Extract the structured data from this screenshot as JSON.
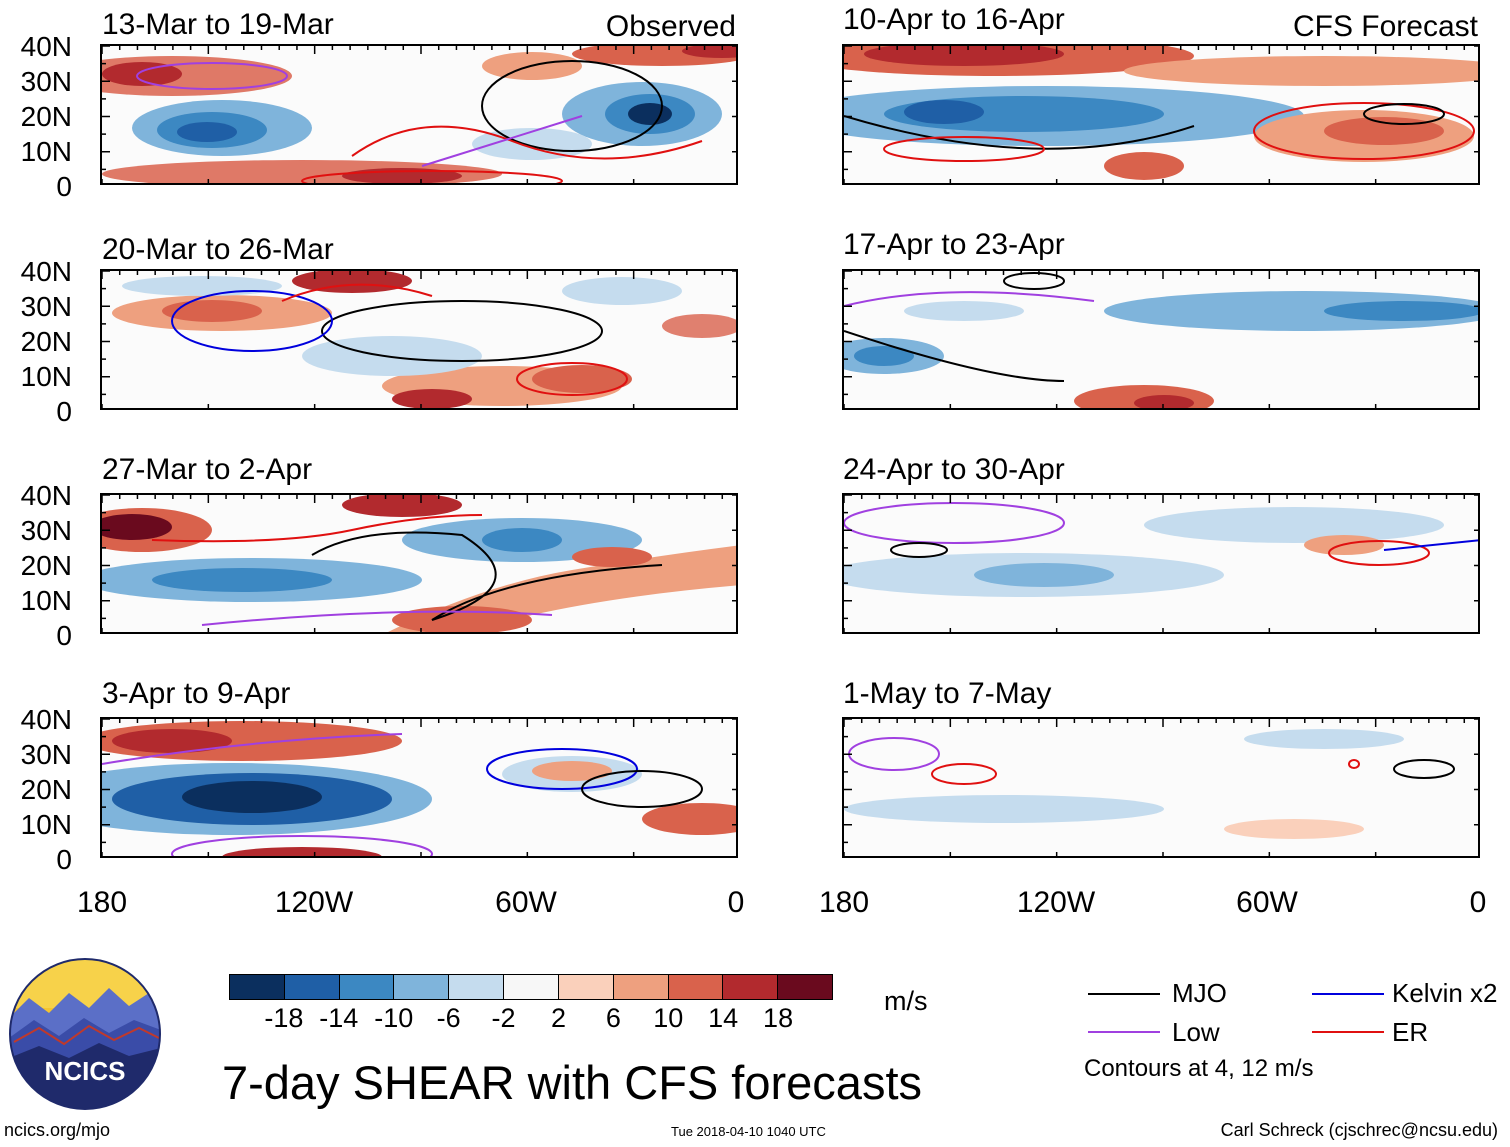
{
  "main_title": "7-day SHEAR with CFS forecasts",
  "observed_label": "Observed",
  "forecast_label": "CFS Forecast",
  "panels": [
    {
      "title": "13-Mar to 19-Mar",
      "column": "observed"
    },
    {
      "title": "20-Mar to 26-Mar",
      "column": "observed"
    },
    {
      "title": "27-Mar to 2-Apr",
      "column": "observed"
    },
    {
      "title": "3-Apr to 9-Apr",
      "column": "observed"
    },
    {
      "title": "10-Apr to 16-Apr",
      "column": "forecast"
    },
    {
      "title": "17-Apr to 23-Apr",
      "column": "forecast"
    },
    {
      "title": "24-Apr to 30-Apr",
      "column": "forecast"
    },
    {
      "title": "1-May to 7-May",
      "column": "forecast"
    }
  ],
  "y_axis_labels": [
    "40N",
    "30N",
    "20N",
    "10N",
    "0"
  ],
  "x_axis_labels": [
    "180",
    "120W",
    "60W",
    "0"
  ],
  "colorbar": {
    "units": "m/s",
    "labels": [
      "-18",
      "-14",
      "-10",
      "-6",
      "-2",
      "2",
      "6",
      "10",
      "14",
      "18"
    ],
    "colors": [
      "#0b2f5e",
      "#1f5fa6",
      "#3c88c2",
      "#7fb4db",
      "#c5dcee",
      "#f7f7f7",
      "#fad0bb",
      "#eea07f",
      "#d9624c",
      "#b22a2e",
      "#6a0a1e"
    ]
  },
  "legend": {
    "items": [
      {
        "label": "MJO",
        "color": "#000000"
      },
      {
        "label": "Kelvin x2",
        "color": "#0000dd"
      },
      {
        "label": "Low",
        "color": "#a040e0"
      },
      {
        "label": "ER",
        "color": "#e01010"
      }
    ],
    "contour_note": "Contours at 4, 12 m/s"
  },
  "logo_text": "NCICS",
  "footer": {
    "left": "ncics.org/mjo",
    "center": "Tue 2018-04-10 1040 UTC",
    "right": "Carl Schreck (cjschrec@ncsu.edu)"
  }
}
